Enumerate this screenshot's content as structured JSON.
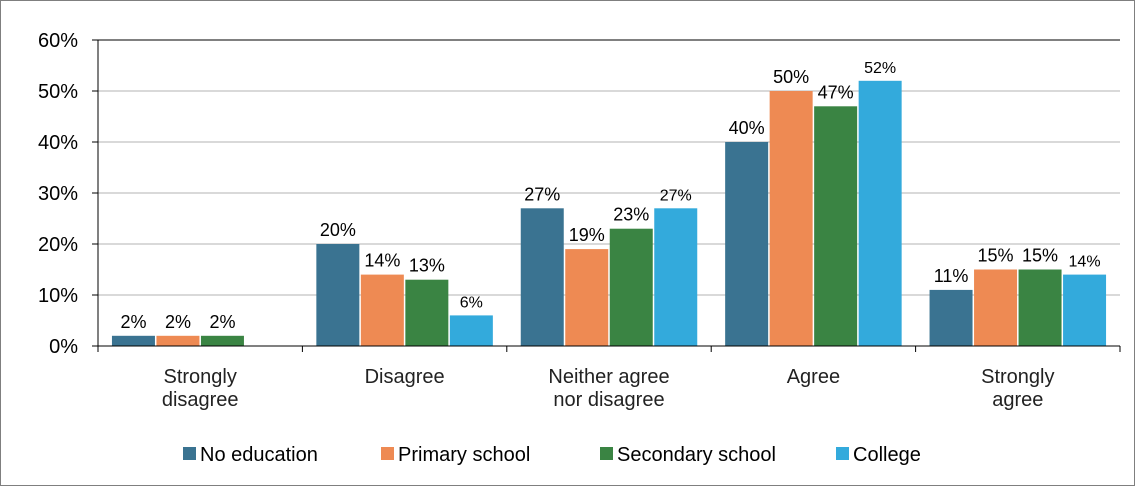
{
  "chart_data": {
    "type": "bar",
    "categories": [
      [
        "Strongly",
        "disagree"
      ],
      [
        "Disagree"
      ],
      [
        "Neither agree",
        "nor disagree"
      ],
      [
        "Agree"
      ],
      [
        "Strongly",
        "agree"
      ]
    ],
    "series": [
      {
        "name": "No education",
        "color": "#3a7391",
        "values": [
          2,
          20,
          27,
          40,
          11
        ],
        "labels": [
          "2%",
          "20%",
          "27%",
          "40%",
          "11%"
        ]
      },
      {
        "name": "Primary school",
        "color": "#ee8a53",
        "values": [
          2,
          14,
          19,
          50,
          15
        ],
        "labels": [
          "2%",
          "14%",
          "19%",
          "50%",
          "15%"
        ]
      },
      {
        "name": "Secondary school",
        "color": "#3a8443",
        "values": [
          2,
          13,
          23,
          47,
          15
        ],
        "labels": [
          "2%",
          "13%",
          "23%",
          "47%",
          "15%"
        ]
      },
      {
        "name": "College",
        "color": "#33aadc",
        "values": [
          0,
          6,
          27,
          52,
          14
        ],
        "labels": [
          "",
          "6%",
          "27%",
          "52%",
          "14%"
        ]
      }
    ],
    "ylim": [
      0,
      60
    ],
    "yticks": [
      "0%",
      "10%",
      "20%",
      "30%",
      "40%",
      "50%",
      "60%"
    ],
    "grid": true,
    "legend_position": "bottom"
  }
}
